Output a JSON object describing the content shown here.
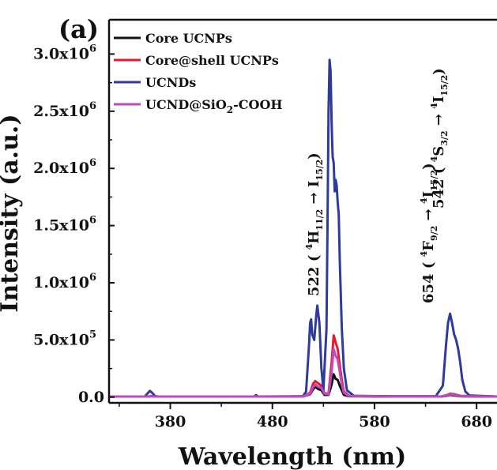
{
  "chart_data": {
    "type": "line",
    "panel_label": "(a)",
    "xlabel": "Wavelength (nm)",
    "ylabel": "Intensity (a.u.)",
    "xlim": [
      320,
      700
    ],
    "ylim": [
      -50000,
      3300000
    ],
    "x_ticks": [
      380,
      480,
      580,
      680
    ],
    "y_ticks": [
      {
        "value": 0,
        "mant": "0.0",
        "exp": ""
      },
      {
        "value": 500000,
        "mant": "5.0x10",
        "exp": "5"
      },
      {
        "value": 1000000,
        "mant": "1.0x10",
        "exp": "6"
      },
      {
        "value": 1500000,
        "mant": "1.5x10",
        "exp": "6"
      },
      {
        "value": 2000000,
        "mant": "2.0x10",
        "exp": "6"
      },
      {
        "value": 2500000,
        "mant": "2.5x10",
        "exp": "6"
      },
      {
        "value": 3000000,
        "mant": "3.0x10",
        "exp": "6"
      }
    ],
    "legend_position": "top-left",
    "series": [
      {
        "name": "Core UCNPs",
        "color": "#111111",
        "points": [
          [
            320,
            5000
          ],
          [
            350,
            5000
          ],
          [
            359,
            5000
          ],
          [
            361,
            9000
          ],
          [
            364,
            5000
          ],
          [
            440,
            5000
          ],
          [
            510,
            5000
          ],
          [
            517,
            25000
          ],
          [
            520,
            70000
          ],
          [
            522,
            90000
          ],
          [
            525,
            70000
          ],
          [
            528,
            60000
          ],
          [
            531,
            20000
          ],
          [
            535,
            20000
          ],
          [
            538,
            110000
          ],
          [
            540,
            200000
          ],
          [
            542,
            160000
          ],
          [
            544,
            150000
          ],
          [
            546,
            100000
          ],
          [
            548,
            60000
          ],
          [
            550,
            20000
          ],
          [
            555,
            8000
          ],
          [
            600,
            5000
          ],
          [
            645,
            5000
          ],
          [
            650,
            10000
          ],
          [
            654,
            20000
          ],
          [
            658,
            15000
          ],
          [
            665,
            7000
          ],
          [
            700,
            5000
          ]
        ]
      },
      {
        "name": "Core@shell UCNPs",
        "color": "#e8192c",
        "points": [
          [
            320,
            5000
          ],
          [
            360,
            5000
          ],
          [
            361,
            10000
          ],
          [
            364,
            5000
          ],
          [
            510,
            5000
          ],
          [
            517,
            40000
          ],
          [
            520,
            120000
          ],
          [
            522,
            140000
          ],
          [
            525,
            120000
          ],
          [
            528,
            100000
          ],
          [
            531,
            35000
          ],
          [
            535,
            30000
          ],
          [
            538,
            300000
          ],
          [
            540,
            540000
          ],
          [
            542,
            480000
          ],
          [
            544,
            420000
          ],
          [
            546,
            280000
          ],
          [
            548,
            150000
          ],
          [
            550,
            50000
          ],
          [
            555,
            12000
          ],
          [
            600,
            5000
          ],
          [
            645,
            5000
          ],
          [
            650,
            15000
          ],
          [
            654,
            30000
          ],
          [
            658,
            25000
          ],
          [
            665,
            10000
          ],
          [
            700,
            5000
          ]
        ]
      },
      {
        "name": "UCNDs",
        "color": "#2e3a9c",
        "points": [
          [
            320,
            5000
          ],
          [
            355,
            5000
          ],
          [
            357,
            25000
          ],
          [
            360,
            55000
          ],
          [
            362,
            40000
          ],
          [
            365,
            10000
          ],
          [
            368,
            5000
          ],
          [
            440,
            5000
          ],
          [
            462,
            5000
          ],
          [
            464,
            18000
          ],
          [
            466,
            5000
          ],
          [
            510,
            8000
          ],
          [
            513,
            50000
          ],
          [
            516,
            480000
          ],
          [
            517,
            650000
          ],
          [
            518,
            680000
          ],
          [
            519,
            550000
          ],
          [
            521,
            500000
          ],
          [
            523,
            720000
          ],
          [
            524,
            800000
          ],
          [
            526,
            650000
          ],
          [
            528,
            250000
          ],
          [
            530,
            60000
          ],
          [
            533,
            600000
          ],
          [
            534,
            1500000
          ],
          [
            535,
            2500000
          ],
          [
            536,
            2950000
          ],
          [
            537,
            2850000
          ],
          [
            538,
            2400000
          ],
          [
            539,
            2100000
          ],
          [
            540,
            2050000
          ],
          [
            541,
            1800000
          ],
          [
            542,
            1900000
          ],
          [
            543,
            1850000
          ],
          [
            544,
            1700000
          ],
          [
            545,
            1600000
          ],
          [
            546,
            1200000
          ],
          [
            548,
            600000
          ],
          [
            550,
            250000
          ],
          [
            553,
            60000
          ],
          [
            560,
            10000
          ],
          [
            600,
            8000
          ],
          [
            640,
            8000
          ],
          [
            647,
            100000
          ],
          [
            650,
            450000
          ],
          [
            652,
            650000
          ],
          [
            654,
            730000
          ],
          [
            656,
            650000
          ],
          [
            658,
            550000
          ],
          [
            660,
            500000
          ],
          [
            662,
            420000
          ],
          [
            664,
            300000
          ],
          [
            666,
            150000
          ],
          [
            669,
            50000
          ],
          [
            673,
            15000
          ],
          [
            700,
            5000
          ]
        ]
      },
      {
        "name": "UCND@SiO2-COOH",
        "color": "#c048c0",
        "points": [
          [
            320,
            5000
          ],
          [
            360,
            5000
          ],
          [
            361,
            10000
          ],
          [
            364,
            5000
          ],
          [
            510,
            5000
          ],
          [
            517,
            30000
          ],
          [
            520,
            90000
          ],
          [
            522,
            110000
          ],
          [
            525,
            90000
          ],
          [
            528,
            80000
          ],
          [
            531,
            30000
          ],
          [
            535,
            25000
          ],
          [
            538,
            220000
          ],
          [
            540,
            420000
          ],
          [
            542,
            360000
          ],
          [
            544,
            330000
          ],
          [
            546,
            220000
          ],
          [
            548,
            110000
          ],
          [
            550,
            40000
          ],
          [
            555,
            10000
          ],
          [
            600,
            5000
          ],
          [
            645,
            5000
          ],
          [
            650,
            12000
          ],
          [
            654,
            25000
          ],
          [
            658,
            20000
          ],
          [
            665,
            8000
          ],
          [
            700,
            5000
          ]
        ]
      }
    ],
    "annotations": [
      {
        "id": "ann-522",
        "pre": "522 ( ",
        "sup": "4",
        "main": "H",
        "sub": "11/2",
        "arrow": "→",
        "end": " I",
        "endsub": "15/2",
        "close": ")"
      },
      {
        "id": "ann-542",
        "pre": "542 ( ",
        "sup": "4",
        "main": "S",
        "sub": "3/2",
        "arrow": "→",
        "sup2": "4",
        "end": "I",
        "endsub": "15/2",
        "close": ")"
      },
      {
        "id": "ann-654",
        "pre": "654 ( ",
        "sup": "4",
        "main": "F",
        "sub": "9/2",
        "arrow": "→",
        "sup2": "4",
        "end": "I",
        "endsub": "15/2",
        "close": ")"
      }
    ]
  }
}
